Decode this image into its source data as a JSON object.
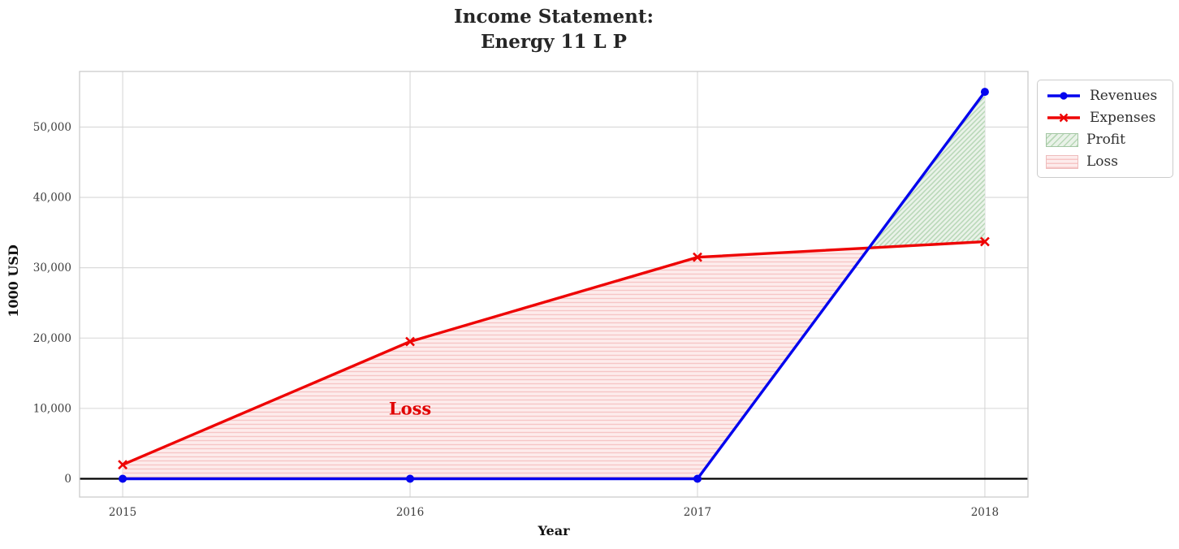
{
  "title": {
    "line1": "Income Statement:",
    "line2": "Energy 11 L P"
  },
  "x_axis": {
    "label": "Year"
  },
  "y_axis": {
    "label": "1000 USD"
  },
  "legend": {
    "items": [
      {
        "label": "Revenues",
        "swatch": "blue-line-circle-marker"
      },
      {
        "label": "Expenses",
        "swatch": "red-line-x-marker"
      },
      {
        "label": "Profit",
        "swatch": "green-diagonal-hatch-patch"
      },
      {
        "label": "Loss",
        "swatch": "red-horizontal-hatch-patch"
      }
    ]
  },
  "theme": {
    "title_color": "#262626",
    "tick_color": "#3d3d3d",
    "grid_color": "#d7d7d7",
    "spine_color": "#cbcbcb",
    "zero_line_color": "#000000",
    "legend_bg": "#ffffff",
    "legend_border": "#cccccc",
    "legend_text": "#2f2f2f",
    "profit_edge": "#a3c6a3",
    "loss_edge": "#eebcbc"
  },
  "chart_data": {
    "type": "line",
    "title": "Income Statement:\nEnergy 11 L P",
    "xlabel": "Year",
    "ylabel": "1000 USD",
    "x": [
      2015,
      2016,
      2017,
      2018
    ],
    "series": [
      {
        "name": "Revenues",
        "color": "#0404ee",
        "marker": "circle",
        "values": [
          0,
          0,
          0,
          55000
        ]
      },
      {
        "name": "Expenses",
        "color": "#ee0404",
        "marker": "x",
        "values": [
          2000,
          19500,
          31500,
          33700
        ]
      }
    ],
    "fill_regions": [
      {
        "name": "Loss",
        "upper": "Expenses",
        "lower": "Revenues",
        "face": "#fdecec",
        "hatch": "horizontal",
        "hatch_color": "#f6c6c6"
      },
      {
        "name": "Profit",
        "upper": "Revenues",
        "lower": "Expenses",
        "face": "#e9f2e8",
        "hatch": "diagonal",
        "hatch_color": "#b7d7b6"
      }
    ],
    "annotations": [
      {
        "text": "Loss",
        "x": 2016,
        "y": 9900,
        "color": "#e00000"
      }
    ],
    "xlim": [
      2014.85,
      2018.15
    ],
    "ylim": [
      -2600,
      57900
    ],
    "xticks": [
      2015,
      2016,
      2017,
      2018
    ],
    "xtick_labels": [
      "2015",
      "2016",
      "2017",
      "2018"
    ],
    "yticks": [
      0,
      10000,
      20000,
      30000,
      40000,
      50000
    ],
    "ytick_labels": [
      "0",
      "10,000",
      "20,000",
      "30,000",
      "40,000",
      "50,000"
    ],
    "grid": true,
    "zero_line": true,
    "legend_position": "outside-upper-right"
  }
}
